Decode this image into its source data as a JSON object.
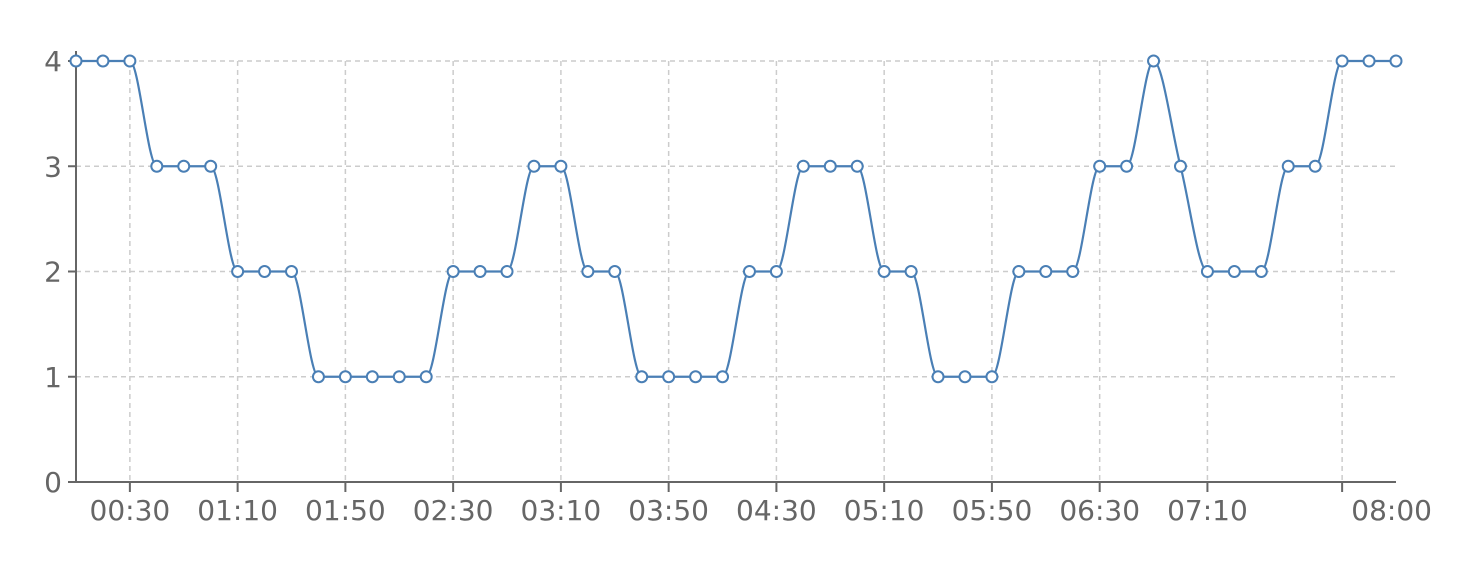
{
  "chart_data": {
    "type": "line",
    "title": "",
    "xlabel": "",
    "ylabel": "",
    "x": [
      "00:10",
      "00:20",
      "00:30",
      "00:40",
      "00:50",
      "01:00",
      "01:10",
      "01:20",
      "01:30",
      "01:40",
      "01:50",
      "02:00",
      "02:10",
      "02:20",
      "02:30",
      "02:40",
      "02:50",
      "03:00",
      "03:10",
      "03:20",
      "03:30",
      "03:40",
      "03:50",
      "04:00",
      "04:10",
      "04:20",
      "04:30",
      "04:40",
      "04:50",
      "05:00",
      "05:10",
      "05:20",
      "05:30",
      "05:40",
      "05:50",
      "06:00",
      "06:10",
      "06:20",
      "06:30",
      "06:40",
      "06:50",
      "07:00",
      "07:10",
      "07:20",
      "07:30",
      "07:40",
      "07:50",
      "08:00",
      "08:10",
      "08:20"
    ],
    "series": [
      {
        "values": [
          4,
          4,
          4,
          3,
          3,
          3,
          2,
          2,
          2,
          1,
          1,
          1,
          1,
          1,
          2,
          2,
          2,
          3,
          3,
          2,
          2,
          1,
          1,
          1,
          1,
          2,
          2,
          3,
          3,
          3,
          2,
          2,
          1,
          1,
          1,
          2,
          2,
          2,
          3,
          3,
          4,
          3,
          2,
          2,
          2,
          3,
          3,
          4,
          4,
          4
        ]
      }
    ],
    "xticks": [
      "00:30",
      "01:10",
      "01:50",
      "02:30",
      "03:10",
      "03:50",
      "04:30",
      "05:10",
      "05:50",
      "06:30",
      "07:10",
      "08:00"
    ],
    "yticks": [
      "0",
      "1",
      "2",
      "3",
      "4"
    ],
    "ylim": [
      0,
      4
    ],
    "grid": true,
    "legend": "none",
    "line_color": "#4a7fb5"
  }
}
